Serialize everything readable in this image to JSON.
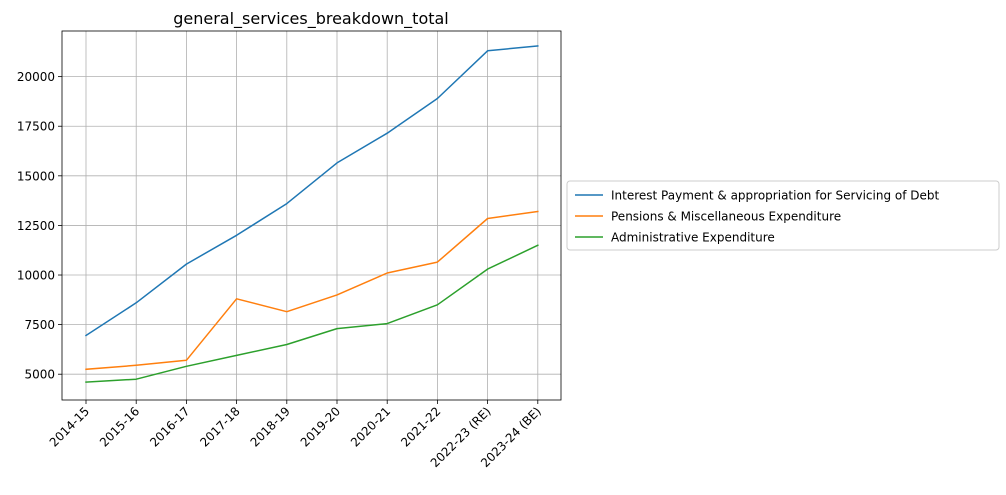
{
  "chart_data": {
    "type": "line",
    "title": "general_services_breakdown_total",
    "xlabel": "",
    "ylabel": "",
    "categories": [
      "2014-15",
      "2015-16",
      "2016-17",
      "2017-18",
      "2018-19",
      "2019-20",
      "2020-21",
      "2021-22",
      "2022-23 (RE)",
      "2023-24 (BE)"
    ],
    "ylim": [
      3700,
      22300
    ],
    "yticks": [
      5000,
      7500,
      10000,
      12500,
      15000,
      17500,
      20000
    ],
    "ytick_labels": [
      "5000",
      "7500",
      "10000",
      "12500",
      "15000",
      "17500",
      "20000"
    ],
    "grid": true,
    "legend_position": "outside-right",
    "series": [
      {
        "name": "Interest Payment & appropriation for Servicing of Debt",
        "color": "#1f77b4",
        "values": [
          6950,
          8600,
          10550,
          12000,
          13600,
          15650,
          17150,
          18900,
          21300,
          21550
        ]
      },
      {
        "name": "Pensions & Miscellaneous Expenditure",
        "color": "#ff7f0e",
        "values": [
          5250,
          5450,
          5700,
          8800,
          8150,
          9000,
          10100,
          10650,
          12850,
          13200
        ]
      },
      {
        "name": "Administrative Expenditure",
        "color": "#2ca02c",
        "values": [
          4600,
          4750,
          5400,
          5950,
          6500,
          7300,
          7550,
          8500,
          10300,
          11500
        ]
      }
    ]
  }
}
